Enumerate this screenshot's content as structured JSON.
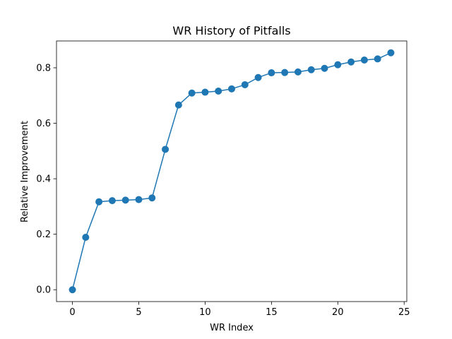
{
  "chart_data": {
    "type": "line",
    "title": "WR History of Pitfalls",
    "xlabel": "WR Index",
    "ylabel": "Relative Improvement",
    "x": [
      0,
      1,
      2,
      3,
      4,
      5,
      6,
      7,
      8,
      9,
      10,
      11,
      12,
      13,
      14,
      15,
      16,
      17,
      18,
      19,
      20,
      21,
      22,
      23,
      24
    ],
    "series": [
      {
        "values": [
          0.0,
          0.189,
          0.317,
          0.321,
          0.323,
          0.325,
          0.331,
          0.506,
          0.666,
          0.709,
          0.712,
          0.716,
          0.724,
          0.739,
          0.765,
          0.782,
          0.783,
          0.785,
          0.793,
          0.798,
          0.811,
          0.821,
          0.828,
          0.832,
          0.854
        ],
        "color": "#1f77b4",
        "marker": "circle"
      }
    ],
    "xlim": [
      -1.2,
      25.2
    ],
    "ylim": [
      -0.0427,
      0.8967
    ],
    "xticks": [
      0,
      5,
      10,
      15,
      20,
      25
    ],
    "xtick_labels": [
      "0",
      "5",
      "10",
      "15",
      "20",
      "25"
    ],
    "yticks": [
      0.0,
      0.2,
      0.4,
      0.6,
      0.8
    ],
    "ytick_labels": [
      "0.0",
      "0.2",
      "0.4",
      "0.6",
      "0.8"
    ],
    "grid": false,
    "legend": "none"
  }
}
